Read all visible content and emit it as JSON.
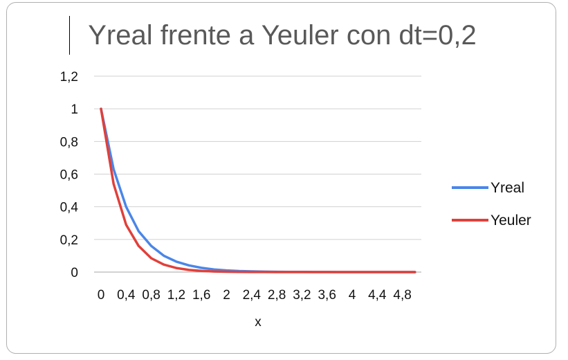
{
  "chart_data": {
    "type": "line",
    "title": "Yreal frente a Yeuler con dt=0,2",
    "xlabel": "x",
    "ylabel": "",
    "ylim": [
      0,
      1.2
    ],
    "yticks": [
      "0",
      "0,2",
      "0,4",
      "0,6",
      "0,8",
      "1",
      "1,2"
    ],
    "categories": [
      "0",
      "0,2",
      "0,4",
      "0,6",
      "0,8",
      "1",
      "1,2",
      "1,4",
      "1,6",
      "1,8",
      "2",
      "2,2",
      "2,4",
      "2,6",
      "2,8",
      "3",
      "3,2",
      "3,4",
      "3,6",
      "3,8",
      "4",
      "4,2",
      "4,4",
      "4,6",
      "4,8",
      "5"
    ],
    "x_tick_labels": [
      "0",
      "0,4",
      "0,8",
      "1,2",
      "1,6",
      "2",
      "2,4",
      "2,8",
      "3,2",
      "3,6",
      "4",
      "4,4",
      "4,8"
    ],
    "grid": true,
    "legend": "right",
    "series": [
      {
        "name": "Yreal",
        "color": "#4a86e8",
        "values": [
          1,
          0.63,
          0.4,
          0.25,
          0.16,
          0.1,
          0.064,
          0.041,
          0.026,
          0.016,
          0.01,
          0.0064,
          0.0041,
          0.0026,
          0.0017,
          0.001,
          0.0007,
          0.0004,
          0.0003,
          0.0002,
          0.0001,
          0.0001,
          0,
          0,
          0,
          0
        ]
      },
      {
        "name": "Yeuler",
        "color": "#e0403a",
        "values": [
          1,
          0.54,
          0.29,
          0.16,
          0.085,
          0.046,
          0.025,
          0.013,
          0.0072,
          0.0039,
          0.0021,
          0.0011,
          0.0006,
          0.0003,
          0.0002,
          0.0001,
          0,
          0,
          0,
          0,
          0,
          0,
          0,
          0,
          0,
          0
        ]
      }
    ]
  }
}
